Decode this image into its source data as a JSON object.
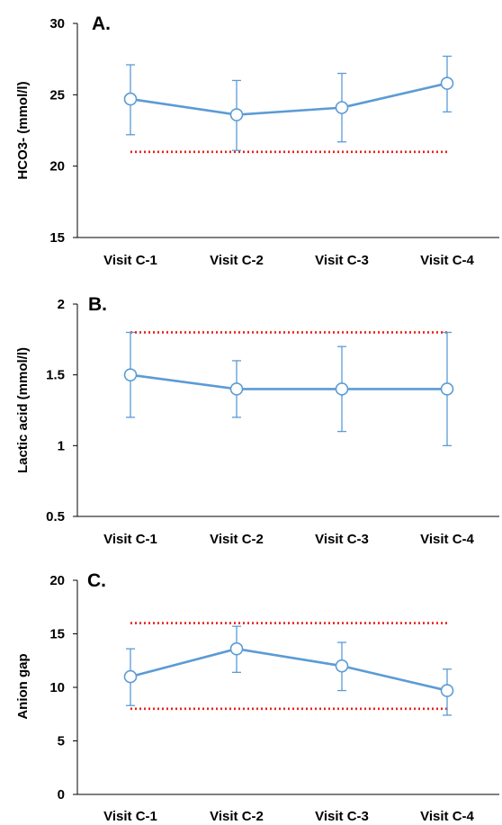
{
  "chart_data": [
    {
      "type": "line",
      "panel_label": "A.",
      "ylabel": "HCO3- (mmol/l)",
      "categories": [
        "Visit C-1",
        "Visit C-2",
        "Visit C-3",
        "Visit C-4"
      ],
      "ylim": [
        15,
        30
      ],
      "yticks": [
        "15",
        "20",
        "25",
        "30"
      ],
      "series": [
        {
          "values": [
            24.7,
            23.6,
            24.1,
            25.8
          ],
          "error_low": [
            22.2,
            21.1,
            21.7,
            23.8
          ],
          "error_high": [
            27.1,
            26.0,
            26.5,
            27.7
          ]
        }
      ],
      "reference_lines": [
        21
      ],
      "grid": false,
      "colors": {
        "series": "#5b9bd5",
        "reference": "#e8231c"
      }
    },
    {
      "type": "line",
      "panel_label": "B.",
      "ylabel": "Lactic acid (mmol/l)",
      "categories": [
        "Visit C-1",
        "Visit C-2",
        "Visit C-3",
        "Visit C-4"
      ],
      "ylim": [
        0.5,
        2
      ],
      "yticks": [
        "0.5",
        "1",
        "1.5",
        "2"
      ],
      "series": [
        {
          "values": [
            1.5,
            1.4,
            1.4,
            1.4
          ],
          "error_low": [
            1.2,
            1.2,
            1.1,
            1.0
          ],
          "error_high": [
            1.8,
            1.6,
            1.7,
            1.8
          ]
        }
      ],
      "reference_lines": [
        1.8
      ],
      "grid": false,
      "colors": {
        "series": "#5b9bd5",
        "reference": "#e8231c"
      }
    },
    {
      "type": "line",
      "panel_label": "C.",
      "ylabel": "Anion gap",
      "categories": [
        "Visit C-1",
        "Visit C-2",
        "Visit C-3",
        "Visit C-4"
      ],
      "ylim": [
        0,
        20
      ],
      "yticks": [
        "0",
        "5",
        "10",
        "15",
        "20"
      ],
      "series": [
        {
          "values": [
            11.0,
            13.6,
            12.0,
            9.7
          ],
          "error_low": [
            8.3,
            11.4,
            9.7,
            7.4
          ],
          "error_high": [
            13.6,
            15.7,
            14.2,
            11.7
          ]
        }
      ],
      "reference_lines": [
        16,
        8
      ],
      "grid": false,
      "colors": {
        "series": "#5b9bd5",
        "reference": "#e8231c"
      }
    }
  ]
}
